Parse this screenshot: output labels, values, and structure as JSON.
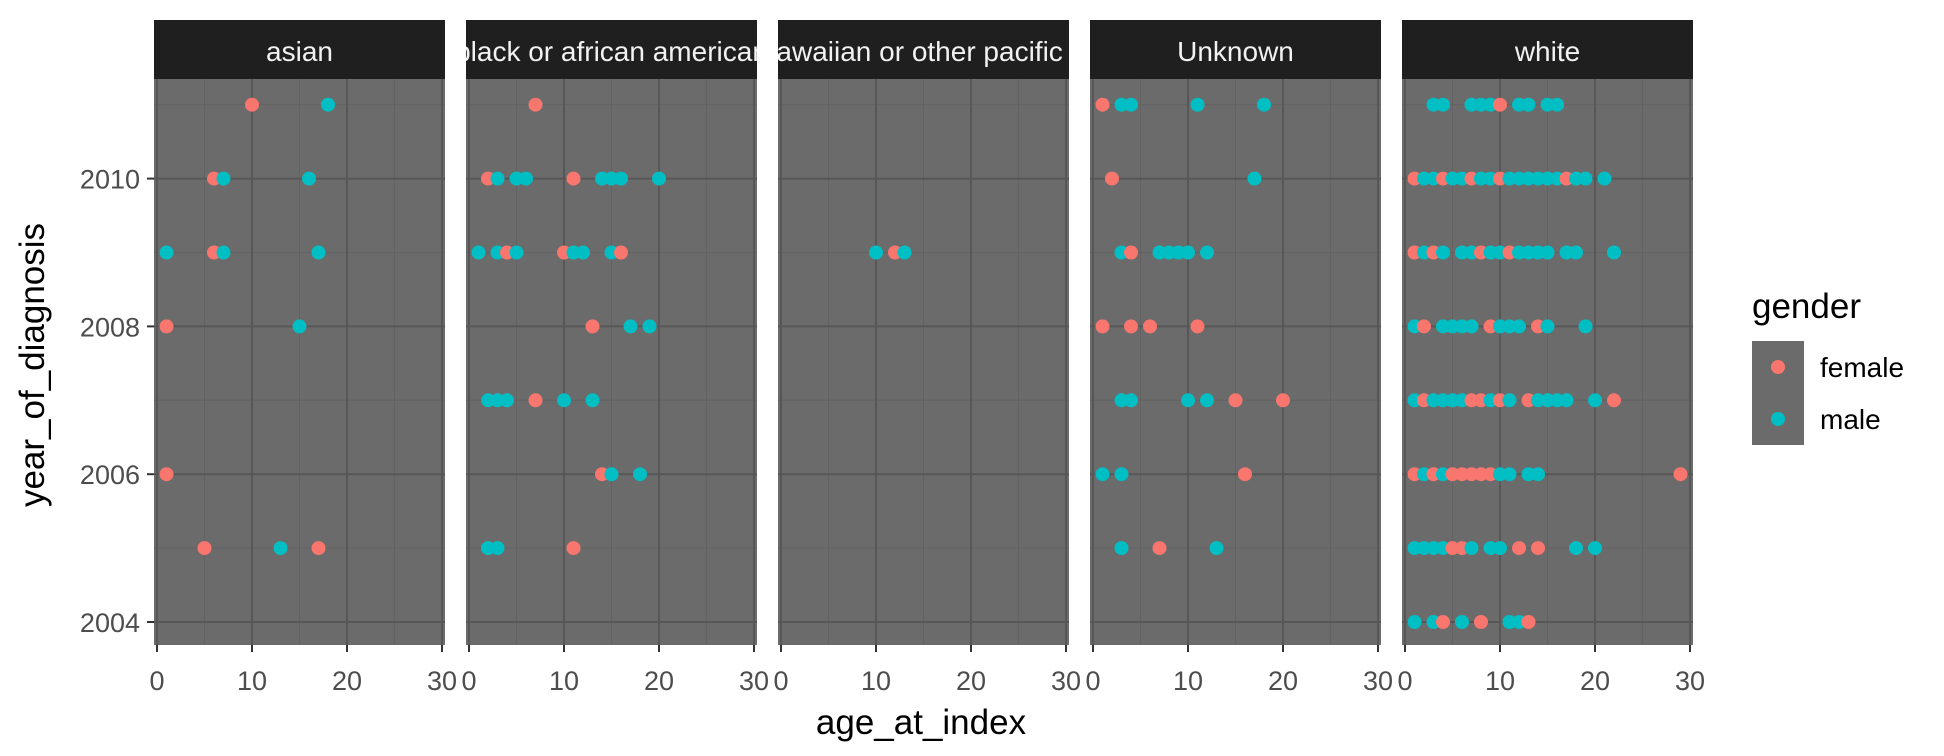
{
  "chart_data": {
    "type": "scatter",
    "xlabel": "age_at_index",
    "ylabel": "year_of_diagnosis",
    "xlim": [
      0,
      30
    ],
    "ylim": [
      2003.8,
      2011.5
    ],
    "xticks": [
      "0",
      "10",
      "20",
      "30"
    ],
    "yticks": [
      "2004",
      "2006",
      "2008",
      "2010"
    ],
    "grid": true,
    "legend": {
      "title": "gender",
      "position": "right",
      "entries": [
        {
          "label": "female",
          "color": "#F8766D"
        },
        {
          "label": "male",
          "color": "#00BFC4"
        }
      ]
    },
    "panels": [
      {
        "label": "asian",
        "points": [
          {
            "x": 10,
            "y": 2011,
            "g": "female"
          },
          {
            "x": 18,
            "y": 2011,
            "g": "male"
          },
          {
            "x": 6,
            "y": 2010,
            "g": "female"
          },
          {
            "x": 7,
            "y": 2010,
            "g": "male"
          },
          {
            "x": 16,
            "y": 2010,
            "g": "male"
          },
          {
            "x": 1,
            "y": 2009,
            "g": "male"
          },
          {
            "x": 6,
            "y": 2009,
            "g": "female"
          },
          {
            "x": 7,
            "y": 2009,
            "g": "male"
          },
          {
            "x": 17,
            "y": 2009,
            "g": "male"
          },
          {
            "x": 1,
            "y": 2008,
            "g": "female"
          },
          {
            "x": 15,
            "y": 2008,
            "g": "male"
          },
          {
            "x": 1,
            "y": 2006,
            "g": "female"
          },
          {
            "x": 5,
            "y": 2005,
            "g": "female"
          },
          {
            "x": 13,
            "y": 2005,
            "g": "male"
          },
          {
            "x": 17,
            "y": 2005,
            "g": "female"
          }
        ]
      },
      {
        "label": "black or african american",
        "points": [
          {
            "x": 7,
            "y": 2011,
            "g": "female"
          },
          {
            "x": 2,
            "y": 2010,
            "g": "female"
          },
          {
            "x": 3,
            "y": 2010,
            "g": "male"
          },
          {
            "x": 5,
            "y": 2010,
            "g": "male"
          },
          {
            "x": 6,
            "y": 2010,
            "g": "male"
          },
          {
            "x": 11,
            "y": 2010,
            "g": "female"
          },
          {
            "x": 14,
            "y": 2010,
            "g": "male"
          },
          {
            "x": 15,
            "y": 2010,
            "g": "male"
          },
          {
            "x": 16,
            "y": 2010,
            "g": "male"
          },
          {
            "x": 20,
            "y": 2010,
            "g": "male"
          },
          {
            "x": 1,
            "y": 2009,
            "g": "male"
          },
          {
            "x": 3,
            "y": 2009,
            "g": "male"
          },
          {
            "x": 4,
            "y": 2009,
            "g": "female"
          },
          {
            "x": 5,
            "y": 2009,
            "g": "male"
          },
          {
            "x": 10,
            "y": 2009,
            "g": "female"
          },
          {
            "x": 11,
            "y": 2009,
            "g": "male"
          },
          {
            "x": 12,
            "y": 2009,
            "g": "male"
          },
          {
            "x": 15,
            "y": 2009,
            "g": "male"
          },
          {
            "x": 16,
            "y": 2009,
            "g": "female"
          },
          {
            "x": 13,
            "y": 2008,
            "g": "female"
          },
          {
            "x": 17,
            "y": 2008,
            "g": "male"
          },
          {
            "x": 19,
            "y": 2008,
            "g": "male"
          },
          {
            "x": 2,
            "y": 2007,
            "g": "male"
          },
          {
            "x": 3,
            "y": 2007,
            "g": "male"
          },
          {
            "x": 4,
            "y": 2007,
            "g": "male"
          },
          {
            "x": 7,
            "y": 2007,
            "g": "female"
          },
          {
            "x": 10,
            "y": 2007,
            "g": "male"
          },
          {
            "x": 13,
            "y": 2007,
            "g": "male"
          },
          {
            "x": 14,
            "y": 2006,
            "g": "female"
          },
          {
            "x": 15,
            "y": 2006,
            "g": "male"
          },
          {
            "x": 18,
            "y": 2006,
            "g": "male"
          },
          {
            "x": 2,
            "y": 2005,
            "g": "male"
          },
          {
            "x": 3,
            "y": 2005,
            "g": "male"
          },
          {
            "x": 11,
            "y": 2005,
            "g": "female"
          }
        ]
      },
      {
        "label": "native hawaiian or other pacific islander",
        "points": [
          {
            "x": 10,
            "y": 2009,
            "g": "male"
          },
          {
            "x": 12,
            "y": 2009,
            "g": "female"
          },
          {
            "x": 13,
            "y": 2009,
            "g": "male"
          }
        ]
      },
      {
        "label": "Unknown",
        "points": [
          {
            "x": 1,
            "y": 2011,
            "g": "female"
          },
          {
            "x": 3,
            "y": 2011,
            "g": "male"
          },
          {
            "x": 4,
            "y": 2011,
            "g": "male"
          },
          {
            "x": 11,
            "y": 2011,
            "g": "male"
          },
          {
            "x": 18,
            "y": 2011,
            "g": "male"
          },
          {
            "x": 2,
            "y": 2010,
            "g": "female"
          },
          {
            "x": 17,
            "y": 2010,
            "g": "male"
          },
          {
            "x": 3,
            "y": 2009,
            "g": "male"
          },
          {
            "x": 4,
            "y": 2009,
            "g": "female"
          },
          {
            "x": 7,
            "y": 2009,
            "g": "male"
          },
          {
            "x": 8,
            "y": 2009,
            "g": "male"
          },
          {
            "x": 9,
            "y": 2009,
            "g": "male"
          },
          {
            "x": 10,
            "y": 2009,
            "g": "male"
          },
          {
            "x": 12,
            "y": 2009,
            "g": "male"
          },
          {
            "x": 1,
            "y": 2008,
            "g": "female"
          },
          {
            "x": 4,
            "y": 2008,
            "g": "female"
          },
          {
            "x": 6,
            "y": 2008,
            "g": "female"
          },
          {
            "x": 11,
            "y": 2008,
            "g": "female"
          },
          {
            "x": 3,
            "y": 2007,
            "g": "male"
          },
          {
            "x": 4,
            "y": 2007,
            "g": "male"
          },
          {
            "x": 10,
            "y": 2007,
            "g": "male"
          },
          {
            "x": 12,
            "y": 2007,
            "g": "male"
          },
          {
            "x": 15,
            "y": 2007,
            "g": "female"
          },
          {
            "x": 20,
            "y": 2007,
            "g": "female"
          },
          {
            "x": 1,
            "y": 2006,
            "g": "male"
          },
          {
            "x": 3,
            "y": 2006,
            "g": "male"
          },
          {
            "x": 16,
            "y": 2006,
            "g": "female"
          },
          {
            "x": 3,
            "y": 2005,
            "g": "male"
          },
          {
            "x": 7,
            "y": 2005,
            "g": "female"
          },
          {
            "x": 13,
            "y": 2005,
            "g": "male"
          }
        ]
      },
      {
        "label": "white",
        "points": [
          {
            "x": 3,
            "y": 2011,
            "g": "male"
          },
          {
            "x": 4,
            "y": 2011,
            "g": "male"
          },
          {
            "x": 7,
            "y": 2011,
            "g": "male"
          },
          {
            "x": 8,
            "y": 2011,
            "g": "male"
          },
          {
            "x": 9,
            "y": 2011,
            "g": "male"
          },
          {
            "x": 10,
            "y": 2011,
            "g": "female"
          },
          {
            "x": 12,
            "y": 2011,
            "g": "male"
          },
          {
            "x": 13,
            "y": 2011,
            "g": "male"
          },
          {
            "x": 15,
            "y": 2011,
            "g": "male"
          },
          {
            "x": 16,
            "y": 2011,
            "g": "male"
          },
          {
            "x": 1,
            "y": 2010,
            "g": "female"
          },
          {
            "x": 2,
            "y": 2010,
            "g": "male"
          },
          {
            "x": 3,
            "y": 2010,
            "g": "male"
          },
          {
            "x": 4,
            "y": 2010,
            "g": "female"
          },
          {
            "x": 5,
            "y": 2010,
            "g": "male"
          },
          {
            "x": 6,
            "y": 2010,
            "g": "male"
          },
          {
            "x": 7,
            "y": 2010,
            "g": "female"
          },
          {
            "x": 8,
            "y": 2010,
            "g": "male"
          },
          {
            "x": 9,
            "y": 2010,
            "g": "male"
          },
          {
            "x": 10,
            "y": 2010,
            "g": "female"
          },
          {
            "x": 11,
            "y": 2010,
            "g": "male"
          },
          {
            "x": 12,
            "y": 2010,
            "g": "male"
          },
          {
            "x": 13,
            "y": 2010,
            "g": "male"
          },
          {
            "x": 14,
            "y": 2010,
            "g": "male"
          },
          {
            "x": 15,
            "y": 2010,
            "g": "male"
          },
          {
            "x": 16,
            "y": 2010,
            "g": "male"
          },
          {
            "x": 17,
            "y": 2010,
            "g": "female"
          },
          {
            "x": 18,
            "y": 2010,
            "g": "male"
          },
          {
            "x": 19,
            "y": 2010,
            "g": "male"
          },
          {
            "x": 21,
            "y": 2010,
            "g": "male"
          },
          {
            "x": 1,
            "y": 2009,
            "g": "female"
          },
          {
            "x": 2,
            "y": 2009,
            "g": "male"
          },
          {
            "x": 3,
            "y": 2009,
            "g": "female"
          },
          {
            "x": 4,
            "y": 2009,
            "g": "male"
          },
          {
            "x": 6,
            "y": 2009,
            "g": "male"
          },
          {
            "x": 7,
            "y": 2009,
            "g": "male"
          },
          {
            "x": 8,
            "y": 2009,
            "g": "female"
          },
          {
            "x": 9,
            "y": 2009,
            "g": "male"
          },
          {
            "x": 10,
            "y": 2009,
            "g": "male"
          },
          {
            "x": 11,
            "y": 2009,
            "g": "female"
          },
          {
            "x": 12,
            "y": 2009,
            "g": "male"
          },
          {
            "x": 13,
            "y": 2009,
            "g": "male"
          },
          {
            "x": 14,
            "y": 2009,
            "g": "male"
          },
          {
            "x": 15,
            "y": 2009,
            "g": "male"
          },
          {
            "x": 17,
            "y": 2009,
            "g": "male"
          },
          {
            "x": 18,
            "y": 2009,
            "g": "male"
          },
          {
            "x": 22,
            "y": 2009,
            "g": "male"
          },
          {
            "x": 1,
            "y": 2008,
            "g": "male"
          },
          {
            "x": 2,
            "y": 2008,
            "g": "female"
          },
          {
            "x": 4,
            "y": 2008,
            "g": "male"
          },
          {
            "x": 5,
            "y": 2008,
            "g": "male"
          },
          {
            "x": 6,
            "y": 2008,
            "g": "male"
          },
          {
            "x": 7,
            "y": 2008,
            "g": "male"
          },
          {
            "x": 9,
            "y": 2008,
            "g": "female"
          },
          {
            "x": 10,
            "y": 2008,
            "g": "male"
          },
          {
            "x": 11,
            "y": 2008,
            "g": "male"
          },
          {
            "x": 12,
            "y": 2008,
            "g": "male"
          },
          {
            "x": 14,
            "y": 2008,
            "g": "female"
          },
          {
            "x": 15,
            "y": 2008,
            "g": "male"
          },
          {
            "x": 19,
            "y": 2008,
            "g": "male"
          },
          {
            "x": 1,
            "y": 2007,
            "g": "male"
          },
          {
            "x": 2,
            "y": 2007,
            "g": "female"
          },
          {
            "x": 3,
            "y": 2007,
            "g": "male"
          },
          {
            "x": 4,
            "y": 2007,
            "g": "male"
          },
          {
            "x": 5,
            "y": 2007,
            "g": "male"
          },
          {
            "x": 6,
            "y": 2007,
            "g": "male"
          },
          {
            "x": 7,
            "y": 2007,
            "g": "female"
          },
          {
            "x": 8,
            "y": 2007,
            "g": "female"
          },
          {
            "x": 9,
            "y": 2007,
            "g": "male"
          },
          {
            "x": 10,
            "y": 2007,
            "g": "female"
          },
          {
            "x": 11,
            "y": 2007,
            "g": "male"
          },
          {
            "x": 13,
            "y": 2007,
            "g": "female"
          },
          {
            "x": 14,
            "y": 2007,
            "g": "male"
          },
          {
            "x": 15,
            "y": 2007,
            "g": "male"
          },
          {
            "x": 16,
            "y": 2007,
            "g": "male"
          },
          {
            "x": 17,
            "y": 2007,
            "g": "male"
          },
          {
            "x": 20,
            "y": 2007,
            "g": "male"
          },
          {
            "x": 22,
            "y": 2007,
            "g": "female"
          },
          {
            "x": 1,
            "y": 2006,
            "g": "female"
          },
          {
            "x": 2,
            "y": 2006,
            "g": "male"
          },
          {
            "x": 3,
            "y": 2006,
            "g": "female"
          },
          {
            "x": 4,
            "y": 2006,
            "g": "male"
          },
          {
            "x": 5,
            "y": 2006,
            "g": "female"
          },
          {
            "x": 6,
            "y": 2006,
            "g": "female"
          },
          {
            "x": 7,
            "y": 2006,
            "g": "female"
          },
          {
            "x": 8,
            "y": 2006,
            "g": "female"
          },
          {
            "x": 9,
            "y": 2006,
            "g": "female"
          },
          {
            "x": 10,
            "y": 2006,
            "g": "male"
          },
          {
            "x": 11,
            "y": 2006,
            "g": "male"
          },
          {
            "x": 13,
            "y": 2006,
            "g": "male"
          },
          {
            "x": 14,
            "y": 2006,
            "g": "male"
          },
          {
            "x": 29,
            "y": 2006,
            "g": "female"
          },
          {
            "x": 1,
            "y": 2005,
            "g": "male"
          },
          {
            "x": 2,
            "y": 2005,
            "g": "male"
          },
          {
            "x": 3,
            "y": 2005,
            "g": "male"
          },
          {
            "x": 4,
            "y": 2005,
            "g": "male"
          },
          {
            "x": 5,
            "y": 2005,
            "g": "female"
          },
          {
            "x": 6,
            "y": 2005,
            "g": "female"
          },
          {
            "x": 7,
            "y": 2005,
            "g": "male"
          },
          {
            "x": 9,
            "y": 2005,
            "g": "male"
          },
          {
            "x": 10,
            "y": 2005,
            "g": "male"
          },
          {
            "x": 12,
            "y": 2005,
            "g": "female"
          },
          {
            "x": 14,
            "y": 2005,
            "g": "female"
          },
          {
            "x": 18,
            "y": 2005,
            "g": "male"
          },
          {
            "x": 20,
            "y": 2005,
            "g": "male"
          },
          {
            "x": 1,
            "y": 2004,
            "g": "male"
          },
          {
            "x": 3,
            "y": 2004,
            "g": "male"
          },
          {
            "x": 4,
            "y": 2004,
            "g": "female"
          },
          {
            "x": 6,
            "y": 2004,
            "g": "male"
          },
          {
            "x": 8,
            "y": 2004,
            "g": "female"
          },
          {
            "x": 11,
            "y": 2004,
            "g": "male"
          },
          {
            "x": 12,
            "y": 2004,
            "g": "male"
          },
          {
            "x": 13,
            "y": 2004,
            "g": "female"
          }
        ]
      }
    ]
  },
  "colors": {
    "panel_background": "#6b6b6b",
    "strip_background": "#1f1f1f",
    "strip_text": "#f2f2f2",
    "grid_major": "#575757",
    "grid_minor": "#626262",
    "tick_text": "#4d4d4d"
  }
}
